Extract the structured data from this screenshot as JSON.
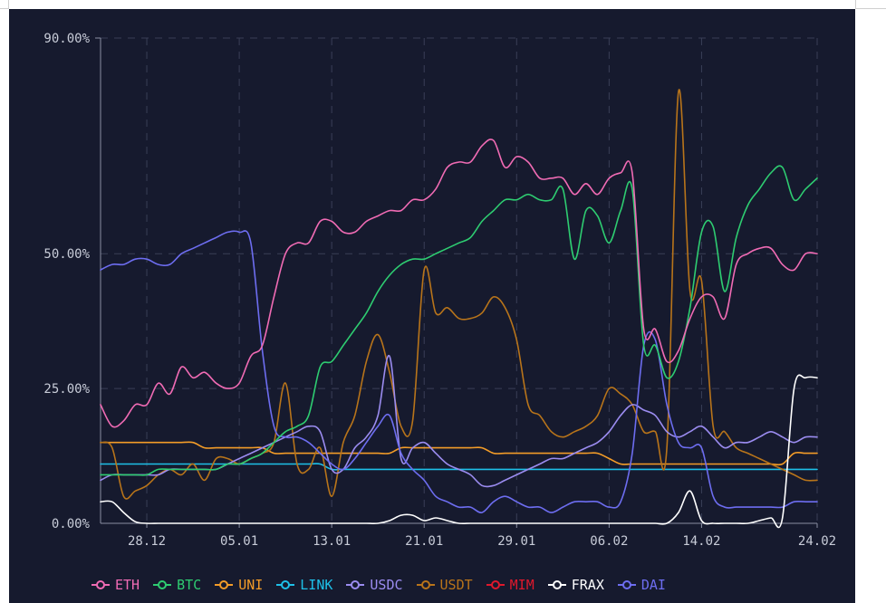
{
  "chart_data": {
    "type": "line",
    "title": "",
    "xlabel": "",
    "ylabel": "",
    "ylim": [
      0,
      90
    ],
    "yticks": [
      {
        "value": 0,
        "label": "0.00%"
      },
      {
        "value": 25,
        "label": "25.00%"
      },
      {
        "value": 50,
        "label": "50.00%"
      },
      {
        "value": 90,
        "label": "90.00%"
      }
    ],
    "xticks": [
      "28.12",
      "05.01",
      "13.01",
      "21.01",
      "29.01",
      "06.02",
      "14.02",
      "24.02"
    ],
    "xtick_pos": [
      4,
      12,
      20,
      28,
      36,
      44,
      52,
      62
    ],
    "xrange": [
      0,
      62
    ],
    "grid": true,
    "legend_position": "bottom",
    "series": [
      {
        "name": "ETH",
        "color": "#f06bb4",
        "values": [
          22,
          18,
          19,
          22,
          22,
          26,
          24,
          29,
          27,
          28,
          26,
          25,
          26,
          31,
          33,
          42,
          50,
          52,
          52,
          56,
          56,
          54,
          54,
          56,
          57,
          58,
          58,
          60,
          60,
          62,
          66,
          67,
          67,
          70,
          71,
          66,
          68,
          67,
          64,
          64,
          64,
          61,
          63,
          61,
          64,
          65,
          65,
          36,
          36,
          30,
          32,
          38,
          42,
          42,
          38,
          48,
          50,
          51,
          51,
          48,
          47,
          50,
          50
        ]
      },
      {
        "name": "BTC",
        "color": "#2ecc71",
        "values": [
          9,
          9,
          9,
          9,
          9,
          10,
          10,
          10,
          10,
          10,
          10,
          11,
          11,
          12,
          13,
          15,
          17,
          18,
          20,
          29,
          30,
          33,
          36,
          39,
          43,
          46,
          48,
          49,
          49,
          50,
          51,
          52,
          53,
          56,
          58,
          60,
          60,
          61,
          60,
          60,
          62,
          49,
          58,
          57,
          52,
          58,
          62,
          33,
          33,
          27,
          30,
          40,
          54,
          55,
          43,
          53,
          59,
          62,
          65,
          66,
          60,
          62,
          64
        ]
      },
      {
        "name": "UNI",
        "color": "#f39c28",
        "values": [
          15,
          15,
          15,
          15,
          15,
          15,
          15,
          15,
          15,
          14,
          14,
          14,
          14,
          14,
          14,
          13,
          13,
          13,
          13,
          13,
          13,
          13,
          13,
          13,
          13,
          13,
          14,
          14,
          14,
          14,
          14,
          14,
          14,
          14,
          13,
          13,
          13,
          13,
          13,
          13,
          13,
          13,
          13,
          13,
          12,
          11,
          11,
          11,
          11,
          11,
          11,
          11,
          11,
          11,
          11,
          11,
          11,
          11,
          11,
          11,
          13,
          13,
          13
        ]
      },
      {
        "name": "LINK",
        "color": "#1ec0e8",
        "values": [
          11,
          11,
          11,
          11,
          11,
          11,
          11,
          11,
          11,
          11,
          11,
          11,
          11,
          11,
          11,
          11,
          11,
          11,
          11,
          11,
          10,
          10,
          10,
          10,
          10,
          10,
          10,
          10,
          10,
          10,
          10,
          10,
          10,
          10,
          10,
          10,
          10,
          10,
          10,
          10,
          10,
          10,
          10,
          10,
          10,
          10,
          10,
          10,
          10,
          10,
          10,
          10,
          10,
          10,
          10,
          10,
          10,
          10,
          10,
          10,
          10,
          10,
          10
        ]
      },
      {
        "name": "USDC",
        "color": "#9b8cf0",
        "values": [
          8,
          9,
          9,
          9,
          9,
          9,
          10,
          10,
          10,
          10,
          10,
          11,
          12,
          13,
          14,
          15,
          16,
          17,
          18,
          17,
          10,
          10,
          14,
          16,
          20,
          31,
          12,
          14,
          15,
          13,
          11,
          10,
          9,
          7,
          7,
          8,
          9,
          10,
          11,
          12,
          12,
          13,
          14,
          15,
          17,
          20,
          22,
          21,
          20,
          17,
          16,
          17,
          18,
          16,
          14,
          15,
          15,
          16,
          17,
          16,
          15,
          16,
          16
        ]
      },
      {
        "name": "USDT",
        "color": "#b8741a",
        "values": [
          15,
          14,
          5,
          6,
          7,
          9,
          10,
          9,
          11,
          8,
          12,
          12,
          11,
          12,
          13,
          15,
          26,
          11,
          10,
          14,
          5,
          15,
          20,
          30,
          35,
          28,
          18,
          19,
          47,
          39,
          40,
          38,
          38,
          39,
          42,
          40,
          34,
          22,
          20,
          17,
          16,
          17,
          18,
          20,
          25,
          24,
          22,
          17,
          17,
          14,
          80,
          43,
          45,
          18,
          17,
          14,
          13,
          12,
          11,
          10,
          9,
          8,
          8
        ]
      },
      {
        "name": "MIM",
        "color": "#e0182c",
        "values": []
      },
      {
        "name": "FRAX",
        "color": "#ffffff",
        "values": [
          4,
          4,
          2,
          0.3,
          0,
          0,
          0,
          0,
          0,
          0,
          0,
          0,
          0,
          0,
          0,
          0,
          0,
          0,
          0,
          0,
          0,
          0,
          0,
          0,
          0,
          0.5,
          1.5,
          1.5,
          0.5,
          1,
          0.5,
          0,
          0,
          0,
          0,
          0,
          0,
          0,
          0,
          0,
          0,
          0,
          0,
          0,
          0,
          0,
          0,
          0,
          0,
          0,
          2,
          6,
          0.5,
          0,
          0,
          0,
          0,
          0.5,
          1,
          1,
          25,
          27,
          27
        ]
      },
      {
        "name": "DAI",
        "color": "#6d6df0",
        "values": [
          47,
          48,
          48,
          49,
          49,
          48,
          48,
          50,
          51,
          52,
          53,
          54,
          54,
          52,
          32,
          18,
          16,
          16,
          15,
          13,
          11,
          10,
          12,
          15,
          18,
          20,
          13,
          10,
          8,
          5,
          4,
          3,
          3,
          2,
          4,
          5,
          4,
          3,
          3,
          2,
          3,
          4,
          4,
          4,
          3,
          4,
          13,
          33,
          34,
          22,
          15,
          14,
          14,
          5,
          3,
          3,
          3,
          3,
          3,
          3,
          4,
          4,
          4
        ]
      }
    ]
  }
}
